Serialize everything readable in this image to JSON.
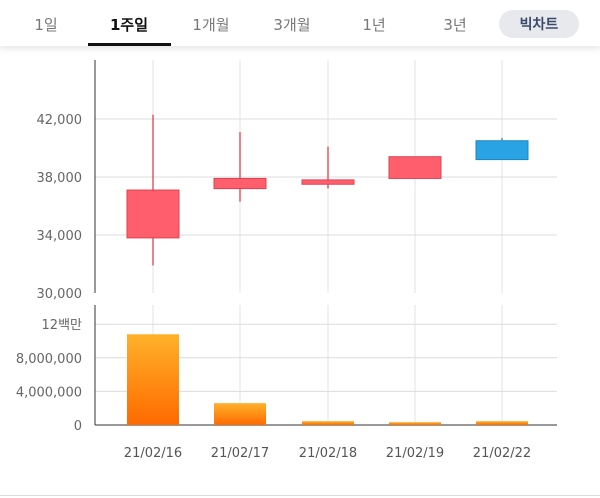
{
  "tabs": [
    {
      "label": "1일",
      "active": false
    },
    {
      "label": "1주일",
      "active": true
    },
    {
      "label": "1개월",
      "active": false
    },
    {
      "label": "3개월",
      "active": false
    },
    {
      "label": "1년",
      "active": false
    },
    {
      "label": "3년",
      "active": false
    }
  ],
  "big_chart_label": "빅차트",
  "colors": {
    "up": "#ff5f6d",
    "down": "#29a3e3",
    "volume_top": "#ffb12a",
    "volume_bottom": "#ff6a00"
  },
  "chart_data": [
    {
      "type": "candlestick",
      "categories": [
        "21/02/16",
        "21/02/17",
        "21/02/18",
        "21/02/19",
        "21/02/22"
      ],
      "series": [
        {
          "open": 33800,
          "high": 42300,
          "low": 31900,
          "close": 37100
        },
        {
          "open": 37200,
          "high": 41100,
          "low": 36300,
          "close": 37900
        },
        {
          "open": 37500,
          "high": 40100,
          "low": 37200,
          "close": 37800
        },
        {
          "open": 37900,
          "high": 39400,
          "low": 37900,
          "close": 39400
        },
        {
          "open": 40500,
          "high": 40700,
          "low": 39300,
          "close": 39200
        }
      ],
      "yticks": [
        "42,000",
        "38,000",
        "34,000",
        "30,000"
      ],
      "ylim": [
        30000,
        46000
      ],
      "grid": true
    },
    {
      "type": "bar",
      "categories": [
        "21/02/16",
        "21/02/17",
        "21/02/18",
        "21/02/19",
        "21/02/22"
      ],
      "values": [
        10800000,
        2600000,
        450000,
        330000,
        450000
      ],
      "yticks": [
        "12백만",
        "8,000,000",
        "4,000,000",
        "0"
      ],
      "ylim": [
        0,
        13500000
      ],
      "grid": true
    }
  ]
}
